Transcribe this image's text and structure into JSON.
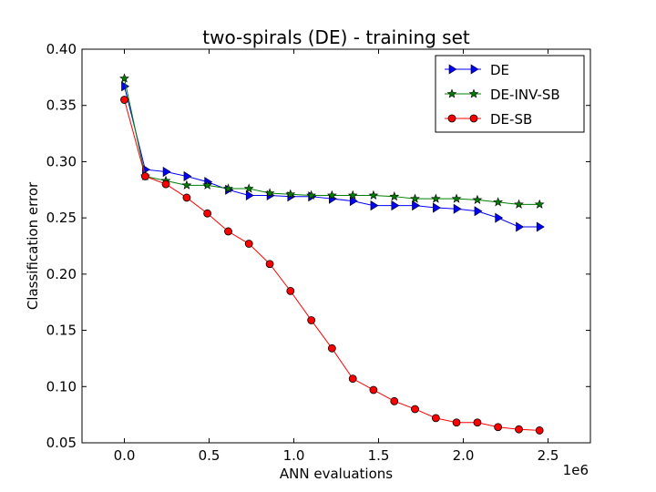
{
  "chart_data": {
    "type": "line",
    "title": "two-spirals (DE) - training set",
    "xlabel": "ANN evaluations",
    "ylabel": "Classification error",
    "x_offset_label": "1e6",
    "xlim": [
      -0.25,
      2.75
    ],
    "ylim": [
      0.05,
      0.4
    ],
    "xticks": [
      0.0,
      0.5,
      1.0,
      1.5,
      2.0,
      2.5
    ],
    "xtick_labels": [
      "0.0",
      "0.5",
      "1.0",
      "1.5",
      "2.0",
      "2.5"
    ],
    "yticks": [
      0.05,
      0.1,
      0.15,
      0.2,
      0.25,
      0.3,
      0.35,
      0.4
    ],
    "ytick_labels": [
      "0.05",
      "0.10",
      "0.15",
      "0.20",
      "0.25",
      "0.30",
      "0.35",
      "0.40"
    ],
    "grid": false,
    "legend_position": "top-right",
    "series": [
      {
        "name": "DE",
        "color": "#0000ff",
        "marker": "triangle-right",
        "x": [
          0.0,
          0.123,
          0.245,
          0.368,
          0.49,
          0.613,
          0.735,
          0.858,
          0.98,
          1.103,
          1.225,
          1.348,
          1.47,
          1.593,
          1.715,
          1.838,
          1.96,
          2.083,
          2.205,
          2.328,
          2.45
        ],
        "y": [
          0.367,
          0.293,
          0.291,
          0.287,
          0.282,
          0.275,
          0.27,
          0.27,
          0.269,
          0.269,
          0.267,
          0.265,
          0.261,
          0.261,
          0.261,
          0.259,
          0.258,
          0.256,
          0.25,
          0.242,
          0.242
        ]
      },
      {
        "name": "DE-INV-SB",
        "color": "#007f00",
        "marker": "star",
        "x": [
          0.0,
          0.123,
          0.245,
          0.368,
          0.49,
          0.613,
          0.735,
          0.858,
          0.98,
          1.103,
          1.225,
          1.348,
          1.47,
          1.593,
          1.715,
          1.838,
          1.96,
          2.083,
          2.205,
          2.328,
          2.45
        ],
        "y": [
          0.374,
          0.287,
          0.283,
          0.279,
          0.279,
          0.276,
          0.276,
          0.272,
          0.271,
          0.27,
          0.27,
          0.27,
          0.27,
          0.269,
          0.267,
          0.267,
          0.267,
          0.266,
          0.264,
          0.262,
          0.262
        ]
      },
      {
        "name": "DE-SB",
        "color": "#ff0000",
        "marker": "circle",
        "x": [
          0.0,
          0.123,
          0.245,
          0.368,
          0.49,
          0.613,
          0.735,
          0.858,
          0.98,
          1.103,
          1.225,
          1.348,
          1.47,
          1.593,
          1.715,
          1.838,
          1.96,
          2.083,
          2.205,
          2.328,
          2.45
        ],
        "y": [
          0.355,
          0.287,
          0.28,
          0.268,
          0.254,
          0.238,
          0.227,
          0.209,
          0.185,
          0.159,
          0.134,
          0.107,
          0.097,
          0.087,
          0.08,
          0.072,
          0.068,
          0.068,
          0.064,
          0.062,
          0.061
        ]
      }
    ]
  }
}
